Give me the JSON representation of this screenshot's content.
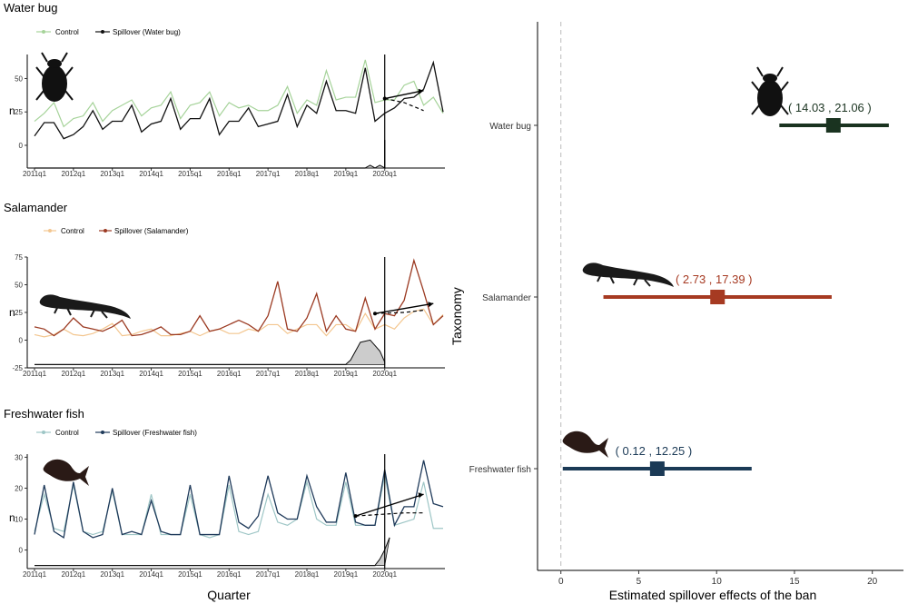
{
  "chart_data": [
    {
      "type": "line",
      "title": "Water bug",
      "ylabel": "n",
      "xlabel": "Quarter",
      "legend": [
        "Control",
        "Spillover (Water bug)"
      ],
      "colors": {
        "control": "#a6d39a",
        "spill": "#111111"
      },
      "ylim": [
        -17,
        68
      ],
      "yticks": [
        0,
        25,
        50
      ],
      "x_ticks": [
        "2011q1",
        "2012q1",
        "2013q1",
        "2014q1",
        "2015q1",
        "2016q1",
        "2017q1",
        "2018q1",
        "2019q1",
        "2020q1"
      ],
      "ban_at": 36,
      "series": [
        {
          "name": "Control",
          "values": [
            18,
            24,
            32,
            14,
            20,
            22,
            32,
            18,
            26,
            30,
            34,
            22,
            28,
            30,
            40,
            20,
            30,
            32,
            40,
            22,
            32,
            28,
            30,
            26,
            26,
            30,
            44,
            24,
            34,
            30,
            56,
            34,
            36,
            36,
            64,
            32,
            34,
            34,
            45,
            48,
            30,
            36,
            24
          ]
        },
        {
          "name": "Spillover (Water bug)",
          "values": [
            7,
            17,
            17,
            5,
            8,
            14,
            26,
            12,
            18,
            18,
            30,
            10,
            16,
            18,
            35,
            12,
            20,
            20,
            35,
            8,
            18,
            18,
            28,
            14,
            16,
            18,
            38,
            14,
            30,
            24,
            48,
            26,
            26,
            24,
            58,
            18,
            24,
            28,
            35,
            36,
            42,
            62,
            25
          ]
        }
      ],
      "counterfactual": [
        [
          36,
          35
        ],
        [
          38,
          32
        ],
        [
          40,
          26
        ]
      ],
      "effect_arrow": [
        [
          36,
          35
        ],
        [
          40,
          41
        ]
      ],
      "density": [
        [
          0,
          -17
        ],
        [
          34,
          -17
        ],
        [
          34.5,
          -15
        ],
        [
          35,
          -17
        ],
        [
          35.5,
          -15
        ],
        [
          36,
          -17
        ],
        [
          36,
          4
        ]
      ]
    },
    {
      "type": "line",
      "title": "Salamander",
      "ylabel": "n",
      "xlabel": "Quarter",
      "legend": [
        "Control",
        "Spillover (Salamander)"
      ],
      "colors": {
        "control": "#f3c68f",
        "spill": "#9b3a22"
      },
      "ylim": [
        -25,
        75
      ],
      "yticks": [
        -25,
        0,
        25,
        50,
        75
      ],
      "x_ticks": [
        "2011q1",
        "2012q1",
        "2013q1",
        "2014q1",
        "2015q1",
        "2016q1",
        "2017q1",
        "2018q1",
        "2019q1",
        "2020q1"
      ],
      "ban_at": 36,
      "series": [
        {
          "name": "Control",
          "values": [
            5,
            3,
            5,
            10,
            5,
            4,
            6,
            10,
            15,
            4,
            5,
            8,
            10,
            4,
            4,
            6,
            8,
            4,
            8,
            10,
            6,
            6,
            10,
            8,
            14,
            14,
            6,
            10,
            14,
            14,
            4,
            14,
            14,
            8,
            24,
            10,
            14,
            10,
            20,
            26,
            28,
            14,
            23
          ]
        },
        {
          "name": "Spillover (Salamander)",
          "values": [
            12,
            10,
            4,
            10,
            20,
            12,
            10,
            8,
            12,
            18,
            4,
            5,
            8,
            12,
            5,
            5,
            8,
            22,
            8,
            10,
            14,
            18,
            14,
            8,
            22,
            53,
            10,
            8,
            20,
            42,
            8,
            22,
            10,
            8,
            38,
            10,
            24,
            22,
            36,
            72,
            44,
            14,
            22
          ]
        }
      ],
      "counterfactual": [
        [
          35,
          24
        ],
        [
          38,
          25
        ],
        [
          40,
          27
        ]
      ],
      "effect_arrow": [
        [
          35,
          24
        ],
        [
          41,
          33
        ]
      ],
      "density": [
        [
          0,
          -22
        ],
        [
          32,
          -22
        ],
        [
          32.5,
          -18
        ],
        [
          33.5,
          -2
        ],
        [
          34.5,
          0
        ],
        [
          35.5,
          -10
        ],
        [
          36,
          -20
        ]
      ]
    },
    {
      "type": "line",
      "title": "Freshwater fish",
      "ylabel": "n",
      "xlabel": "Quarter",
      "legend": [
        "Control",
        "Spillover (Freshwater fish)"
      ],
      "colors": {
        "control": "#9ec6c6",
        "spill": "#1f3a5a"
      },
      "ylim": [
        -6,
        31
      ],
      "yticks": [
        0,
        10,
        20,
        30
      ],
      "x_ticks": [
        "2011q1",
        "2012q1",
        "2013q1",
        "2014q1",
        "2015q1",
        "2016q1",
        "2017q1",
        "2018q1",
        "2019q1",
        "2020q1"
      ],
      "ban_at": 36,
      "series": [
        {
          "name": "Control",
          "values": [
            6,
            18,
            7,
            6,
            21,
            6,
            5,
            6,
            19,
            5,
            5,
            5,
            18,
            5,
            5,
            5,
            18,
            5,
            4,
            5,
            21,
            6,
            5,
            6,
            18,
            9,
            8,
            10,
            22,
            10,
            8,
            8,
            22,
            8,
            8,
            8,
            24,
            8,
            9,
            10,
            22,
            7,
            7
          ]
        },
        {
          "name": "Spillover (Freshwater fish)",
          "values": [
            5,
            21,
            6,
            4,
            22,
            6,
            4,
            5,
            20,
            5,
            6,
            5,
            16,
            6,
            5,
            5,
            21,
            5,
            5,
            5,
            24,
            9,
            7,
            11,
            24,
            12,
            10,
            10,
            24,
            14,
            9,
            9,
            25,
            9,
            8,
            8,
            26,
            8,
            14,
            14,
            29,
            15,
            14
          ]
        }
      ],
      "counterfactual": [
        [
          33,
          11
        ],
        [
          38,
          12
        ],
        [
          40,
          12
        ]
      ],
      "effect_arrow": [
        [
          33,
          11
        ],
        [
          40,
          18
        ]
      ],
      "density": [
        [
          0,
          -5
        ],
        [
          35,
          -5
        ],
        [
          35.5,
          -3
        ],
        [
          36,
          0
        ],
        [
          36.5,
          4
        ]
      ]
    },
    {
      "type": "scatter",
      "subtype": "forest",
      "xlabel": "Estimated spillover effects of the ban",
      "ylabel": "Taxonomy",
      "xlim": [
        -1.5,
        22
      ],
      "x_ticks": [
        0,
        5,
        10,
        15,
        20
      ],
      "rows": [
        {
          "label": "Water bug",
          "estimate": 17.5,
          "low": 14.03,
          "high": 21.06,
          "ci_text": "( 14.03 , 21.06 )",
          "color": "#1a3320"
        },
        {
          "label": "Salamander",
          "estimate": 10.06,
          "low": 2.73,
          "high": 17.39,
          "ci_text": "( 2.73 , 17.39 )",
          "color": "#a63a22"
        },
        {
          "label": "Freshwater fish",
          "estimate": 6.19,
          "low": 0.12,
          "high": 12.25,
          "ci_text": "( 0.12 , 12.25 )",
          "color": "#1b3a56"
        }
      ]
    }
  ],
  "bottom_labels": {
    "left_xlabel": "Quarter",
    "right_xlabel": "Estimated spillover effects of the ban"
  }
}
